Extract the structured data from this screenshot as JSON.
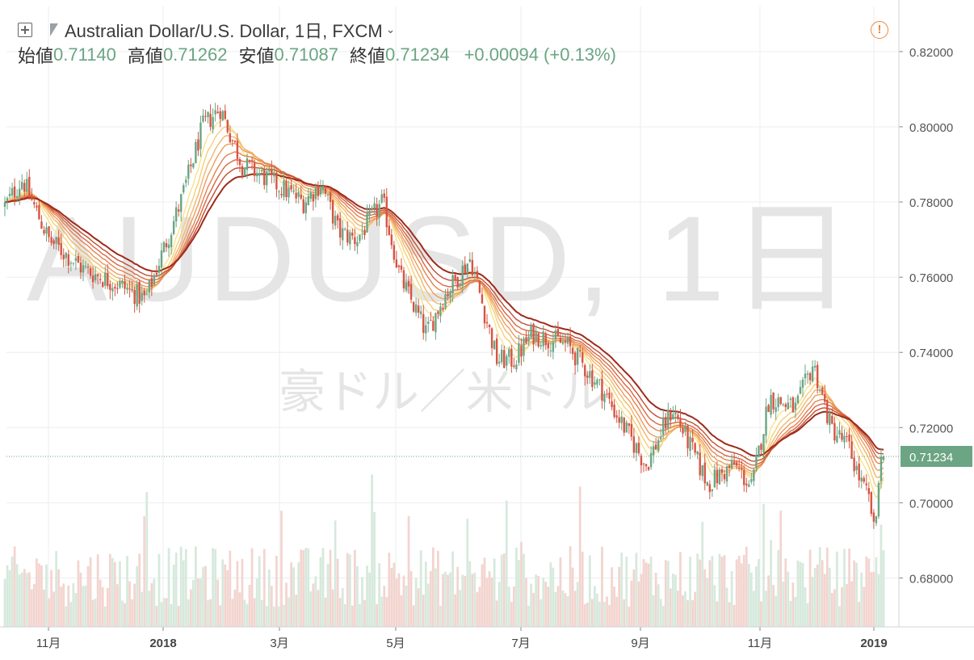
{
  "header": {
    "symbol_title": "Australian Dollar/U.S. Dollar, 1日, FXCM",
    "open_label": "始値",
    "open_value": "0.71140",
    "high_label": "高値",
    "high_value": "0.71262",
    "low_label": "安値",
    "low_value": "0.71087",
    "close_label": "終値",
    "close_value": "0.71234",
    "change": "+0.00094 (+0.13%)",
    "icons": [
      "add-symbol-icon",
      "flag-icon",
      "chevron-down-icon",
      "alert-icon"
    ]
  },
  "watermark": {
    "symbol": "AUDUSD, 1日",
    "name": "豪ドル／米ドル"
  },
  "colors": {
    "up": "#6ba583",
    "down": "#d75442",
    "volume_up": "#d6e9dc",
    "volume_down": "#f3d4cf",
    "ma_fast": "#f7e48a",
    "ma_slow": "#9e2b1b",
    "price_tag": "#6ba583"
  },
  "chart_data": {
    "type": "candlestick",
    "title": "Australian Dollar/U.S. Dollar, 1日, FXCM",
    "y_axis": {
      "ticks": [
        "0.82000",
        "0.80000",
        "0.78000",
        "0.76000",
        "0.74000",
        "0.72000",
        "0.70000",
        "0.68000"
      ],
      "range": [
        0.667,
        0.832
      ],
      "last_price_label": "0.71234"
    },
    "x_axis": {
      "ticks": [
        "11月",
        "2018",
        "3月",
        "5月",
        "7月",
        "9月",
        "11月",
        "2019"
      ],
      "bold_ticks": [
        "2018",
        "2019"
      ]
    },
    "price_path": [
      {
        "t": 0,
        "p": 0.779
      },
      {
        "t": 0.02,
        "p": 0.786
      },
      {
        "t": 0.05,
        "p": 0.77
      },
      {
        "t": 0.09,
        "p": 0.762
      },
      {
        "t": 0.13,
        "p": 0.758
      },
      {
        "t": 0.16,
        "p": 0.754
      },
      {
        "t": 0.2,
        "p": 0.78
      },
      {
        "t": 0.225,
        "p": 0.8
      },
      {
        "t": 0.245,
        "p": 0.805
      },
      {
        "t": 0.27,
        "p": 0.79
      },
      {
        "t": 0.3,
        "p": 0.786
      },
      {
        "t": 0.34,
        "p": 0.78
      },
      {
        "t": 0.36,
        "p": 0.785
      },
      {
        "t": 0.38,
        "p": 0.772
      },
      {
        "t": 0.4,
        "p": 0.77
      },
      {
        "t": 0.43,
        "p": 0.78
      },
      {
        "t": 0.45,
        "p": 0.76
      },
      {
        "t": 0.48,
        "p": 0.745
      },
      {
        "t": 0.5,
        "p": 0.755
      },
      {
        "t": 0.53,
        "p": 0.765
      },
      {
        "t": 0.56,
        "p": 0.738
      },
      {
        "t": 0.58,
        "p": 0.738
      },
      {
        "t": 0.6,
        "p": 0.745
      },
      {
        "t": 0.64,
        "p": 0.742
      },
      {
        "t": 0.68,
        "p": 0.73
      },
      {
        "t": 0.73,
        "p": 0.71
      },
      {
        "t": 0.76,
        "p": 0.725
      },
      {
        "t": 0.8,
        "p": 0.705
      },
      {
        "t": 0.83,
        "p": 0.71
      },
      {
        "t": 0.85,
        "p": 0.704
      },
      {
        "t": 0.87,
        "p": 0.728
      },
      {
        "t": 0.9,
        "p": 0.725
      },
      {
        "t": 0.92,
        "p": 0.737
      },
      {
        "t": 0.94,
        "p": 0.72
      },
      {
        "t": 0.96,
        "p": 0.715
      },
      {
        "t": 0.975,
        "p": 0.705
      },
      {
        "t": 0.985,
        "p": 0.7
      },
      {
        "t": 0.99,
        "p": 0.69
      },
      {
        "t": 0.995,
        "p": 0.71
      },
      {
        "t": 1.0,
        "p": 0.7123
      }
    ],
    "moving_averages": "ribbon of 8 exponential moving averages, yellow (fast) to dark red (slow)"
  }
}
